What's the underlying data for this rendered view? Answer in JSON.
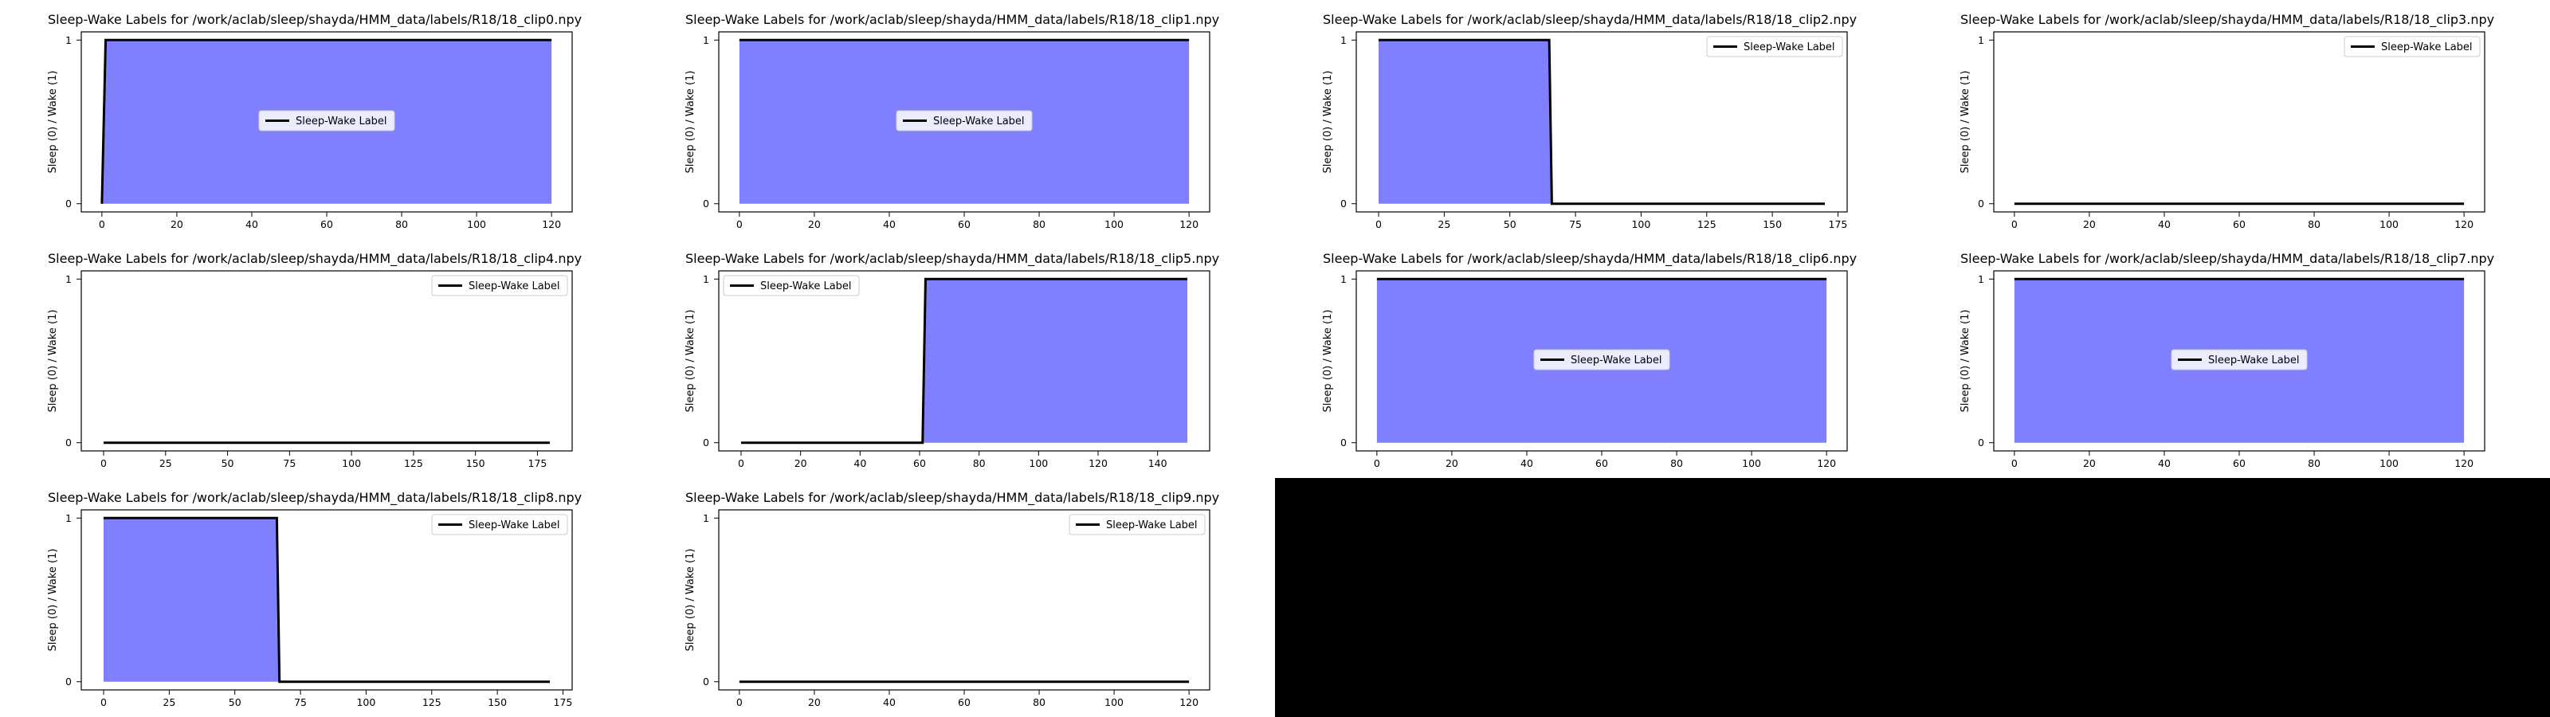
{
  "colors": {
    "fill": "#8080ff",
    "line": "#000000",
    "background": "#ffffff",
    "legend_bg": "#ffffff",
    "empty_region": "#000000"
  },
  "chart_data": [
    {
      "type": "area",
      "title": "Sleep-Wake Labels for /work/aclab/sleep/shayda/HMM_data/labels/R18/18_clip0.npy",
      "ylabel": "Sleep (0) / Wake (1)",
      "xlabel": "",
      "xlim": [
        -5.5,
        125.5
      ],
      "ylim": [
        -0.05,
        1.05
      ],
      "xticks": [
        0,
        20,
        40,
        60,
        80,
        100,
        120
      ],
      "yticks": [
        0,
        1
      ],
      "legend": "center",
      "series": [
        {
          "name": "Sleep-Wake Label",
          "x": [
            0,
            1,
            120
          ],
          "y": [
            0,
            1,
            1
          ]
        }
      ]
    },
    {
      "type": "area",
      "title": "Sleep-Wake Labels for /work/aclab/sleep/shayda/HMM_data/labels/R18/18_clip1.npy",
      "ylabel": "Sleep (0) / Wake (1)",
      "xlabel": "",
      "xlim": [
        -5.5,
        125.5
      ],
      "ylim": [
        -0.05,
        1.05
      ],
      "xticks": [
        0,
        20,
        40,
        60,
        80,
        100,
        120
      ],
      "yticks": [
        0,
        1
      ],
      "legend": "center",
      "series": [
        {
          "name": "Sleep-Wake Label",
          "x": [
            0,
            120
          ],
          "y": [
            1,
            1
          ]
        }
      ]
    },
    {
      "type": "area",
      "title": "Sleep-Wake Labels for /work/aclab/sleep/shayda/HMM_data/labels/R18/18_clip2.npy",
      "ylabel": "Sleep (0) / Wake (1)",
      "xlabel": "",
      "xlim": [
        -8.5,
        178.5
      ],
      "ylim": [
        -0.05,
        1.05
      ],
      "xticks": [
        0,
        25,
        50,
        75,
        100,
        125,
        150,
        175
      ],
      "yticks": [
        0,
        1
      ],
      "legend": "upper right",
      "series": [
        {
          "name": "Sleep-Wake Label",
          "x": [
            0,
            65,
            66,
            170
          ],
          "y": [
            1,
            1,
            0,
            0
          ]
        }
      ]
    },
    {
      "type": "area",
      "title": "Sleep-Wake Labels for /work/aclab/sleep/shayda/HMM_data/labels/R18/18_clip3.npy",
      "ylabel": "Sleep (0) / Wake (1)",
      "xlabel": "",
      "xlim": [
        -5.5,
        125.5
      ],
      "ylim": [
        -0.05,
        1.05
      ],
      "xticks": [
        0,
        20,
        40,
        60,
        80,
        100,
        120
      ],
      "yticks": [
        0,
        1
      ],
      "legend": "upper right",
      "series": [
        {
          "name": "Sleep-Wake Label",
          "x": [
            0,
            120
          ],
          "y": [
            0,
            0
          ]
        }
      ]
    },
    {
      "type": "area",
      "title": "Sleep-Wake Labels for /work/aclab/sleep/shayda/HMM_data/labels/R18/18_clip4.npy",
      "ylabel": "Sleep (0) / Wake (1)",
      "xlabel": "",
      "xlim": [
        -9,
        189
      ],
      "ylim": [
        -0.05,
        1.05
      ],
      "xticks": [
        0,
        25,
        50,
        75,
        100,
        125,
        150,
        175
      ],
      "yticks": [
        0,
        1
      ],
      "legend": "upper right",
      "series": [
        {
          "name": "Sleep-Wake Label",
          "x": [
            0,
            180
          ],
          "y": [
            0,
            0
          ]
        }
      ]
    },
    {
      "type": "area",
      "title": "Sleep-Wake Labels for /work/aclab/sleep/shayda/HMM_data/labels/R18/18_clip5.npy",
      "ylabel": "Sleep (0) / Wake (1)",
      "xlabel": "",
      "xlim": [
        -7.5,
        157.5
      ],
      "ylim": [
        -0.05,
        1.05
      ],
      "xticks": [
        0,
        20,
        40,
        60,
        80,
        100,
        120,
        140
      ],
      "yticks": [
        0,
        1
      ],
      "legend": "upper left",
      "series": [
        {
          "name": "Sleep-Wake Label",
          "x": [
            0,
            61,
            62,
            150
          ],
          "y": [
            0,
            0,
            1,
            1
          ]
        }
      ]
    },
    {
      "type": "area",
      "title": "Sleep-Wake Labels for /work/aclab/sleep/shayda/HMM_data/labels/R18/18_clip6.npy",
      "ylabel": "Sleep (0) / Wake (1)",
      "xlabel": "",
      "xlim": [
        -5.5,
        125.5
      ],
      "ylim": [
        -0.05,
        1.05
      ],
      "xticks": [
        0,
        20,
        40,
        60,
        80,
        100,
        120
      ],
      "yticks": [
        0,
        1
      ],
      "legend": "center",
      "series": [
        {
          "name": "Sleep-Wake Label",
          "x": [
            0,
            120
          ],
          "y": [
            1,
            1
          ]
        }
      ]
    },
    {
      "type": "area",
      "title": "Sleep-Wake Labels for /work/aclab/sleep/shayda/HMM_data/labels/R18/18_clip7.npy",
      "ylabel": "Sleep (0) / Wake (1)",
      "xlabel": "",
      "xlim": [
        -5.5,
        125.5
      ],
      "ylim": [
        -0.05,
        1.05
      ],
      "xticks": [
        0,
        20,
        40,
        60,
        80,
        100,
        120
      ],
      "yticks": [
        0,
        1
      ],
      "legend": "center",
      "series": [
        {
          "name": "Sleep-Wake Label",
          "x": [
            0,
            120
          ],
          "y": [
            1,
            1
          ]
        }
      ]
    },
    {
      "type": "area",
      "title": "Sleep-Wake Labels for /work/aclab/sleep/shayda/HMM_data/labels/R18/18_clip8.npy",
      "ylabel": "Sleep (0) / Wake (1)",
      "xlabel": "",
      "xlim": [
        -8.5,
        178.5
      ],
      "ylim": [
        -0.05,
        1.05
      ],
      "xticks": [
        0,
        25,
        50,
        75,
        100,
        125,
        150,
        175
      ],
      "yticks": [
        0,
        1
      ],
      "legend": "upper right",
      "series": [
        {
          "name": "Sleep-Wake Label",
          "x": [
            0,
            66,
            67,
            170
          ],
          "y": [
            1,
            1,
            0,
            0
          ]
        }
      ]
    },
    {
      "type": "area",
      "title": "Sleep-Wake Labels for /work/aclab/sleep/shayda/HMM_data/labels/R18/18_clip9.npy",
      "ylabel": "Sleep (0) / Wake (1)",
      "xlabel": "",
      "xlim": [
        -5.5,
        125.5
      ],
      "ylim": [
        -0.05,
        1.05
      ],
      "xticks": [
        0,
        20,
        40,
        60,
        80,
        100,
        120
      ],
      "yticks": [
        0,
        1
      ],
      "legend": "upper right",
      "series": [
        {
          "name": "Sleep-Wake Label",
          "x": [
            0,
            120
          ],
          "y": [
            0,
            0
          ]
        }
      ]
    }
  ]
}
